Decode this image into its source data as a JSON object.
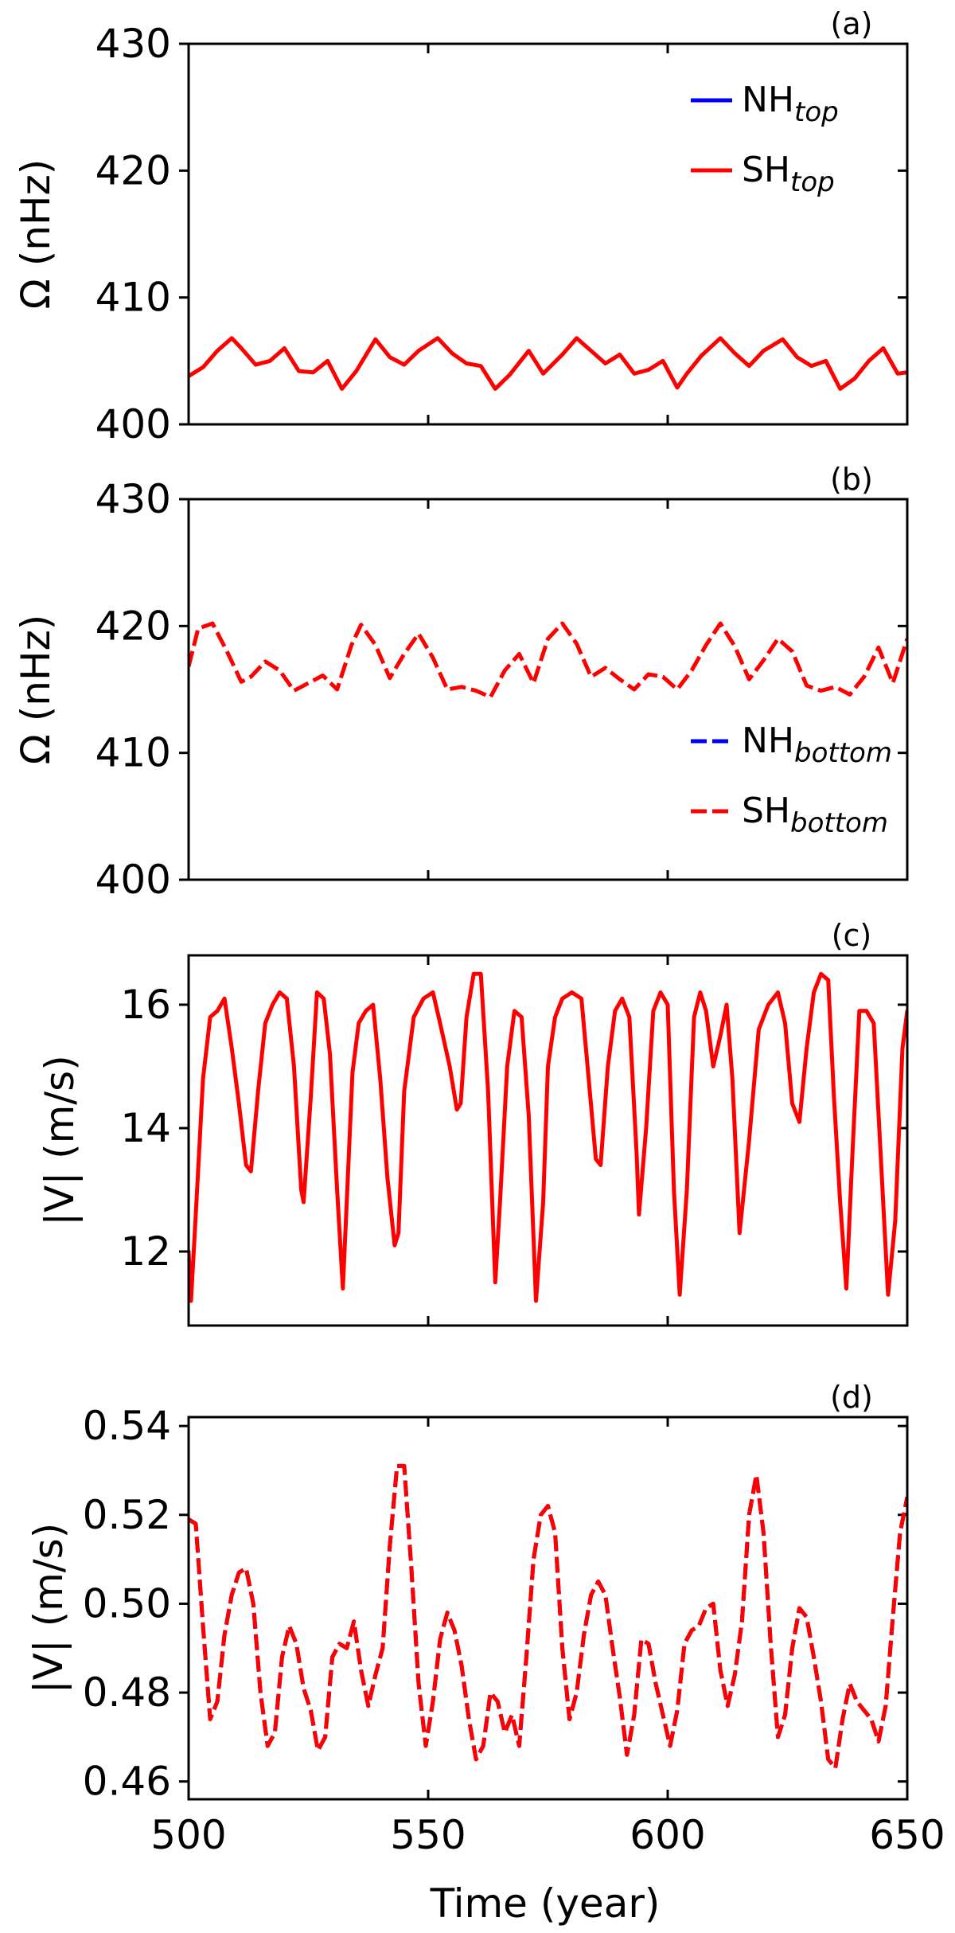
{
  "figure": {
    "xlabel": "Time (year)",
    "xticks": [
      500,
      550,
      600,
      650
    ],
    "xlim": [
      500,
      650
    ],
    "colors": {
      "NH": "#0000ff",
      "SH": "#ff0000",
      "axes": "#000000"
    }
  },
  "chart_data": [
    {
      "type": "line",
      "tag": "(a)",
      "ylabel": "Ω (nHz)",
      "ylim": [
        400,
        430
      ],
      "yticks": [
        400,
        410,
        420,
        430
      ],
      "legend_position": "top-right",
      "line_style": "solid",
      "series": [
        {
          "name": "NH",
          "subscript": "top",
          "color": "#0000ff",
          "hidden_under_sh": true
        },
        {
          "name": "SH",
          "subscript": "top",
          "color": "#ff0000",
          "x": [
            500,
            503,
            506,
            509,
            511,
            514,
            517,
            520,
            523,
            526,
            529,
            532,
            535,
            539,
            542,
            545,
            548,
            552,
            555,
            558,
            561,
            564,
            567,
            571,
            574,
            578,
            581,
            584,
            587,
            590,
            593,
            596,
            599,
            602,
            604,
            607,
            611,
            614,
            617,
            620,
            624,
            627,
            630,
            633,
            636,
            639,
            642,
            645,
            648,
            650
          ],
          "values": [
            403.8,
            404.5,
            405.8,
            406.8,
            406.0,
            404.7,
            405.0,
            406.0,
            404.2,
            404.1,
            405.0,
            402.8,
            404.2,
            406.7,
            405.3,
            404.7,
            405.8,
            406.8,
            405.6,
            404.8,
            404.6,
            402.8,
            403.9,
            405.8,
            404.0,
            405.5,
            406.8,
            405.8,
            404.8,
            405.5,
            404.0,
            404.3,
            405.0,
            402.9,
            404.0,
            405.4,
            406.8,
            405.6,
            404.6,
            405.8,
            406.7,
            405.3,
            404.6,
            405.0,
            402.8,
            403.6,
            405.0,
            406.0,
            404.0,
            404.1
          ]
        }
      ]
    },
    {
      "type": "line",
      "tag": "(b)",
      "ylabel": "Ω (nHz)",
      "ylim": [
        400,
        430
      ],
      "yticks": [
        400,
        410,
        420,
        430
      ],
      "legend_position": "bottom-right",
      "line_style": "dashed",
      "series": [
        {
          "name": "NH",
          "subscript": "bottom",
          "color": "#0000ff",
          "hidden_under_sh": true
        },
        {
          "name": "SH",
          "subscript": "bottom",
          "color": "#ff0000",
          "x": [
            500,
            502,
            505,
            508,
            511,
            513,
            516,
            519,
            522,
            525,
            528,
            531,
            534,
            536,
            539,
            542,
            545,
            548,
            551,
            554,
            557,
            560,
            563,
            566,
            569,
            572,
            575,
            578,
            581,
            584,
            587,
            590,
            593,
            596,
            599,
            602,
            605,
            608,
            611,
            614,
            617,
            620,
            623,
            626,
            629,
            632,
            635,
            638,
            641,
            644,
            647,
            650
          ],
          "values": [
            416.8,
            419.8,
            420.2,
            418.0,
            415.6,
            416.0,
            417.2,
            416.5,
            414.9,
            415.5,
            416.1,
            415.0,
            418.5,
            420.1,
            418.5,
            415.9,
            417.8,
            419.4,
            417.5,
            415.0,
            415.2,
            414.9,
            414.4,
            416.5,
            417.8,
            415.5,
            419.0,
            420.2,
            418.6,
            416.0,
            416.7,
            415.8,
            415.0,
            416.2,
            416.0,
            415.0,
            416.5,
            418.5,
            420.2,
            418.4,
            415.8,
            417.3,
            419.0,
            418.0,
            415.3,
            414.9,
            415.2,
            414.6,
            416.0,
            418.3,
            415.5,
            419.0
          ]
        }
      ]
    },
    {
      "type": "line",
      "tag": "(c)",
      "ylabel": "|V| (m/s)",
      "ylim": [
        10.8,
        16.8
      ],
      "yticks": [
        12,
        14,
        16
      ],
      "line_style": "solid",
      "series": [
        {
          "name": "SH",
          "color": "#ff0000",
          "x": [
            500,
            500.5,
            501.5,
            503,
            504.5,
            506,
            507.5,
            509,
            510.5,
            512,
            513,
            514.5,
            516,
            517.5,
            519,
            520.5,
            522,
            523.5,
            524,
            525.5,
            526.8,
            528.2,
            529.5,
            531,
            532.2,
            533,
            534.2,
            535.5,
            537,
            538.5,
            540,
            541.5,
            543,
            543.8,
            545,
            547,
            549,
            551,
            552.5,
            554.5,
            556,
            556.8,
            558,
            559.5,
            561,
            562.5,
            564,
            565,
            566.5,
            568,
            569.5,
            571,
            572.5,
            574,
            575,
            576.5,
            578,
            580,
            582,
            583.5,
            585,
            586,
            587.5,
            589,
            590.5,
            592,
            593.5,
            594,
            595.5,
            597,
            598.5,
            600,
            601.3,
            602.5,
            604,
            605.5,
            606.8,
            608,
            609.5,
            611,
            612.3,
            613.5,
            615,
            617,
            619,
            621,
            623,
            624.5,
            626,
            627.5,
            629,
            630.5,
            632,
            633.5,
            634.7,
            636,
            637.3,
            638.5,
            640,
            641.5,
            643,
            644.5,
            646,
            647.5,
            649,
            650
          ],
          "values": [
            12.0,
            11.2,
            12.6,
            14.8,
            15.8,
            15.9,
            16.1,
            15.3,
            14.4,
            13.4,
            13.3,
            14.6,
            15.7,
            16.0,
            16.2,
            16.1,
            15.0,
            13.0,
            12.8,
            14.5,
            16.2,
            16.1,
            15.2,
            13.0,
            11.4,
            12.8,
            14.9,
            15.7,
            15.9,
            16.0,
            14.8,
            13.2,
            12.1,
            12.3,
            14.6,
            15.8,
            16.1,
            16.2,
            15.7,
            15.0,
            14.3,
            14.4,
            15.8,
            16.5,
            16.5,
            14.6,
            11.5,
            12.8,
            15.0,
            15.9,
            15.8,
            14.2,
            11.2,
            12.8,
            15.0,
            15.8,
            16.1,
            16.2,
            16.1,
            14.8,
            13.5,
            13.4,
            15.0,
            15.9,
            16.1,
            15.8,
            13.6,
            12.6,
            14.0,
            15.9,
            16.2,
            16.0,
            13.0,
            11.3,
            13.0,
            15.8,
            16.2,
            15.9,
            15.0,
            15.5,
            16.0,
            14.8,
            12.3,
            13.8,
            15.6,
            16.0,
            16.2,
            15.7,
            14.4,
            14.1,
            15.3,
            16.2,
            16.5,
            16.4,
            14.5,
            12.8,
            11.4,
            13.5,
            15.9,
            15.9,
            15.7,
            13.5,
            11.3,
            12.5,
            15.3,
            15.9
          ]
        }
      ]
    },
    {
      "type": "line",
      "tag": "(d)",
      "ylabel": "|V| (m/s)",
      "ylim": [
        0.456,
        0.542
      ],
      "yticks": [
        0.46,
        0.48,
        0.5,
        0.52,
        0.54
      ],
      "ytick_labels": [
        "0.46",
        "0.48",
        "0.50",
        "0.52",
        "0.54"
      ],
      "line_style": "dashed",
      "series": [
        {
          "name": "NH",
          "color": "#0000ff",
          "x": [
            500,
            501.5,
            503,
            504.5,
            506,
            507.5,
            509,
            510.5,
            512,
            513.5,
            515,
            516.5,
            518,
            519.5,
            521,
            522.5,
            524,
            525.5,
            527,
            528.5,
            530,
            531.5,
            533,
            534.5,
            536,
            537.5,
            539,
            540.5,
            542,
            543.5,
            545,
            546.5,
            548,
            549.5,
            551,
            552.5,
            554,
            555.5,
            557,
            558.5,
            560,
            561.5,
            563,
            564.5,
            566,
            567.5,
            569,
            570.5,
            572,
            573.5,
            575,
            576.5,
            578,
            579.5,
            581,
            582.5,
            584,
            585.5,
            587,
            588.5,
            590,
            591.5,
            593,
            594.5,
            596,
            597.5,
            599,
            600.5,
            602,
            603.5,
            605,
            606.5,
            608,
            609.5,
            611,
            612.5,
            614,
            615.5,
            617,
            618.5,
            620,
            621.5,
            623,
            624.5,
            626,
            627.5,
            629,
            630.5,
            632,
            633.5,
            635,
            636.5,
            638,
            639.5,
            641,
            642.5,
            644,
            645.5,
            647,
            648.5,
            650
          ],
          "values": [
            0.519,
            0.518,
            0.495,
            0.474,
            0.478,
            0.493,
            0.502,
            0.507,
            0.508,
            0.5,
            0.48,
            0.468,
            0.471,
            0.488,
            0.495,
            0.491,
            0.481,
            0.476,
            0.467,
            0.47,
            0.488,
            0.491,
            0.49,
            0.496,
            0.485,
            0.477,
            0.484,
            0.49,
            0.513,
            0.531,
            0.531,
            0.508,
            0.482,
            0.468,
            0.478,
            0.492,
            0.498,
            0.494,
            0.486,
            0.474,
            0.465,
            0.468,
            0.48,
            0.478,
            0.471,
            0.475,
            0.468,
            0.488,
            0.51,
            0.52,
            0.522,
            0.516,
            0.49,
            0.474,
            0.48,
            0.493,
            0.502,
            0.505,
            0.502,
            0.49,
            0.479,
            0.466,
            0.475,
            0.492,
            0.491,
            0.482,
            0.475,
            0.468,
            0.476,
            0.491,
            0.494,
            0.495,
            0.499,
            0.5,
            0.485,
            0.477,
            0.484,
            0.496,
            0.52,
            0.529,
            0.516,
            0.491,
            0.47,
            0.475,
            0.49,
            0.499,
            0.497,
            0.488,
            0.478,
            0.465,
            0.463,
            0.474,
            0.482,
            0.478,
            0.476,
            0.474,
            0.469,
            0.477,
            0.497,
            0.516,
            0.524
          ]
        },
        {
          "name": "SH",
          "color": "#ff0000",
          "x": [
            500,
            501.5,
            503,
            504.5,
            506,
            507.5,
            509,
            510.5,
            512,
            513.5,
            515,
            516.5,
            518,
            519.5,
            521,
            522.5,
            524,
            525.5,
            527,
            528.5,
            530,
            531.5,
            533,
            534.5,
            536,
            537.5,
            539,
            540.5,
            542,
            543.5,
            545,
            546.5,
            548,
            549.5,
            551,
            552.5,
            554,
            555.5,
            557,
            558.5,
            560,
            561.5,
            563,
            564.5,
            566,
            567.5,
            569,
            570.5,
            572,
            573.5,
            575,
            576.5,
            578,
            579.5,
            581,
            582.5,
            584,
            585.5,
            587,
            588.5,
            590,
            591.5,
            593,
            594.5,
            596,
            597.5,
            599,
            600.5,
            602,
            603.5,
            605,
            606.5,
            608,
            609.5,
            611,
            612.5,
            614,
            615.5,
            617,
            618.5,
            620,
            621.5,
            623,
            624.5,
            626,
            627.5,
            629,
            630.5,
            632,
            633.5,
            635,
            636.5,
            638,
            639.5,
            641,
            642.5,
            644,
            645.5,
            647,
            648.5,
            650
          ],
          "values": [
            0.519,
            0.518,
            0.495,
            0.474,
            0.478,
            0.493,
            0.502,
            0.507,
            0.508,
            0.5,
            0.48,
            0.468,
            0.471,
            0.488,
            0.495,
            0.491,
            0.481,
            0.476,
            0.467,
            0.47,
            0.488,
            0.491,
            0.49,
            0.496,
            0.485,
            0.477,
            0.484,
            0.49,
            0.513,
            0.531,
            0.531,
            0.508,
            0.482,
            0.468,
            0.478,
            0.492,
            0.498,
            0.494,
            0.486,
            0.474,
            0.465,
            0.468,
            0.48,
            0.478,
            0.471,
            0.475,
            0.468,
            0.488,
            0.51,
            0.52,
            0.522,
            0.516,
            0.49,
            0.474,
            0.48,
            0.493,
            0.502,
            0.505,
            0.502,
            0.49,
            0.479,
            0.466,
            0.475,
            0.492,
            0.491,
            0.482,
            0.475,
            0.468,
            0.476,
            0.491,
            0.494,
            0.495,
            0.499,
            0.5,
            0.485,
            0.477,
            0.484,
            0.496,
            0.52,
            0.529,
            0.516,
            0.491,
            0.47,
            0.475,
            0.49,
            0.499,
            0.497,
            0.488,
            0.478,
            0.465,
            0.463,
            0.474,
            0.482,
            0.478,
            0.476,
            0.474,
            0.469,
            0.477,
            0.497,
            0.516,
            0.524
          ]
        }
      ]
    }
  ]
}
